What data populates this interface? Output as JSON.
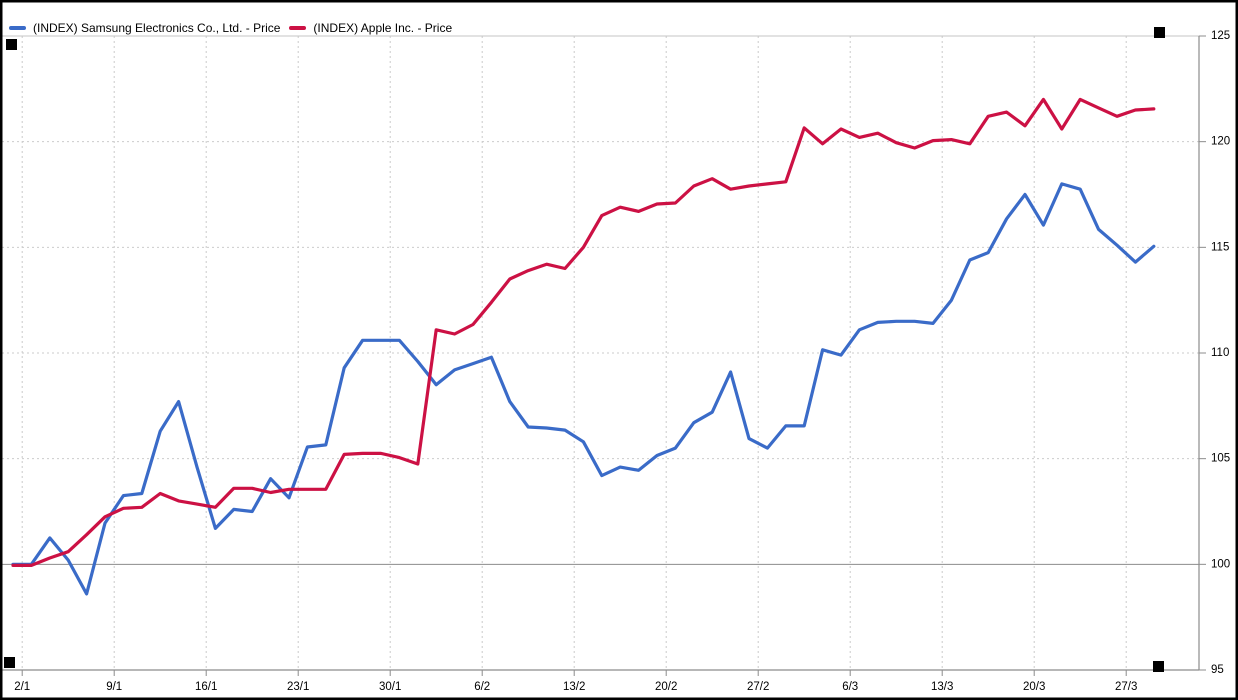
{
  "window": {
    "background": "#ffffff",
    "frame_color": "#000000"
  },
  "legend": {
    "position": "top-left",
    "items": [
      {
        "label": "(INDEX) Samsung Electronics Co., Ltd. - Price",
        "color": "#3A6BC8"
      },
      {
        "label": "(INDEX) Apple Inc. - Price",
        "color": "#CC1144"
      }
    ]
  },
  "chart_data": {
    "type": "line",
    "title": "",
    "xlabel": "",
    "ylabel": "",
    "axis_side": "right",
    "ylim": [
      95,
      125
    ],
    "y_ticks": [
      125,
      120,
      115,
      110,
      105,
      100,
      95
    ],
    "baseline_value": 100,
    "grid": "vertical weekly dashed; horizontal dashed at 105-120; solid light at 125; solid dark at 100",
    "legend_position": "top-left",
    "x": [
      "30/12",
      "2/1",
      "3/1",
      "4/1",
      "5/1",
      "6/1",
      "9/1",
      "10/1",
      "11/1",
      "12/1",
      "13/1",
      "16/1",
      "17/1",
      "18/1",
      "19/1",
      "20/1",
      "23/1",
      "24/1",
      "25/1",
      "26/1",
      "27/1",
      "30/1",
      "31/1",
      "1/2",
      "2/2",
      "3/2",
      "6/2",
      "7/2",
      "8/2",
      "9/2",
      "10/2",
      "13/2",
      "14/2",
      "15/2",
      "16/2",
      "17/2",
      "20/2",
      "21/2",
      "22/2",
      "23/2",
      "24/2",
      "27/2",
      "28/2",
      "1/3",
      "2/3",
      "3/3",
      "6/3",
      "7/3",
      "8/3",
      "9/3",
      "10/3",
      "13/3",
      "14/3",
      "15/3",
      "16/3",
      "17/3",
      "20/3",
      "21/3",
      "22/3",
      "23/3",
      "24/3",
      "27/3",
      "28/3"
    ],
    "x_tick_labels": [
      "2/1",
      "9/1",
      "16/1",
      "23/1",
      "30/1",
      "6/2",
      "13/2",
      "20/2",
      "27/2",
      "6/3",
      "13/3",
      "20/3",
      "27/3"
    ],
    "series": [
      {
        "name": "(INDEX) Samsung Electronics Co., Ltd. - Price",
        "color": "#3A6BC8",
        "values": [
          100,
          100,
          101.25,
          100.2,
          98.6,
          101.95,
          103.25,
          103.35,
          106.3,
          107.7,
          104.6,
          101.7,
          102.6,
          102.5,
          104.05,
          103.15,
          105.55,
          105.65,
          109.3,
          110.6,
          110.6,
          110.6,
          109.6,
          108.5,
          109.2,
          109.5,
          109.8,
          107.7,
          106.5,
          106.45,
          106.35,
          105.8,
          104.2,
          104.6,
          104.45,
          105.15,
          105.5,
          106.7,
          107.2,
          109.1,
          105.95,
          105.5,
          106.55,
          106.55,
          110.15,
          109.9,
          111.1,
          111.45,
          111.5,
          111.5,
          111.4,
          112.5,
          114.4,
          114.75,
          116.35,
          117.5,
          116.05,
          118,
          117.75,
          115.85,
          115.1,
          114.3,
          115.05
        ]
      },
      {
        "name": "(INDEX) Apple Inc. - Price",
        "color": "#CC1144",
        "values": [
          99.95,
          99.95,
          100.3,
          100.6,
          101.4,
          102.25,
          102.65,
          102.7,
          103.35,
          103,
          102.85,
          102.7,
          103.6,
          103.6,
          103.4,
          103.55,
          103.55,
          103.55,
          105.2,
          105.25,
          105.25,
          105.05,
          104.75,
          111.1,
          110.9,
          111.35,
          112.4,
          113.5,
          113.9,
          114.2,
          114,
          115,
          116.5,
          116.9,
          116.7,
          117.05,
          117.1,
          117.9,
          118.25,
          117.75,
          117.9,
          118,
          118.1,
          120.65,
          119.9,
          120.6,
          120.2,
          120.4,
          119.95,
          119.7,
          120.05,
          120.1,
          119.9,
          121.2,
          121.4,
          120.75,
          122,
          120.6,
          122,
          121.6,
          121.2,
          121.5,
          121.55
        ]
      }
    ]
  },
  "decorations": {
    "selection_handles": [
      "top-left",
      "top-right",
      "bottom-left",
      "bottom-right"
    ],
    "selection_handle_color": "#000000"
  },
  "colors": {
    "grid_dashed": "#CBCBCB",
    "grid_top_solid": "#C4C4C4",
    "baseline_100": "#8C8C8C",
    "axis": "#8C8C8C",
    "tick_text": "#000000"
  }
}
